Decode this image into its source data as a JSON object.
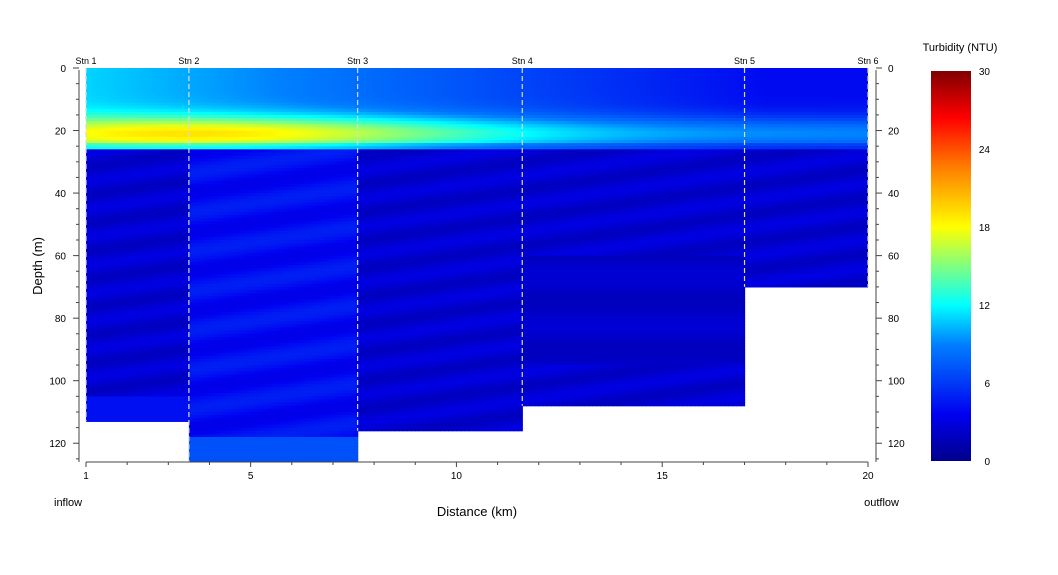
{
  "chart_data": {
    "type": "heatmap",
    "xlabel": "Distance (km)",
    "ylabel": "Depth (m)",
    "xlim": [
      1,
      20
    ],
    "ylim": [
      0,
      126
    ],
    "y_reversed": true,
    "xticks": [
      1,
      5,
      10,
      15,
      20
    ],
    "yticks": [
      0,
      20,
      40,
      60,
      80,
      100,
      120
    ],
    "grid": false,
    "left_annotation": "inflow",
    "right_annotation": "outflow",
    "stations": [
      {
        "name": "Stn 1",
        "x": 1.0,
        "bottom_depth": 113
      },
      {
        "name": "Stn 2",
        "x": 3.5,
        "bottom_depth": 126
      },
      {
        "name": "Stn 3",
        "x": 7.6,
        "bottom_depth": 116
      },
      {
        "name": "Stn 4",
        "x": 11.6,
        "bottom_depth": 108
      },
      {
        "name": "Stn 5",
        "x": 17.0,
        "bottom_depth": 70
      },
      {
        "name": "Stn 6",
        "x": 20.0,
        "bottom_depth": 70
      }
    ],
    "profile_segments": [
      {
        "x_start": 1.0,
        "x_end": 3.5,
        "bottom_depth": 113
      },
      {
        "x_start": 3.5,
        "x_end": 7.6,
        "bottom_depth": 126
      },
      {
        "x_start": 7.6,
        "x_end": 11.6,
        "bottom_depth": 116
      },
      {
        "x_start": 11.6,
        "x_end": 17.0,
        "bottom_depth": 108
      },
      {
        "x_start": 17.0,
        "x_end": 20.0,
        "bottom_depth": 70
      }
    ],
    "colorbar": {
      "title": "Turbidity (NTU)",
      "min": 0,
      "max": 30,
      "ticks": [
        0,
        6,
        12,
        18,
        24,
        30
      ]
    },
    "turbidity_band": {
      "surface_layer_depth": [
        0,
        26
      ],
      "peak_depth": 21,
      "peak_distance_km": 3.5,
      "peak_value": 19,
      "upstream_surface_value": 11,
      "downstream_surface_value": 4,
      "deep_water_value": 2.5,
      "near_bottom_value_stn2_stn3": 7
    }
  }
}
